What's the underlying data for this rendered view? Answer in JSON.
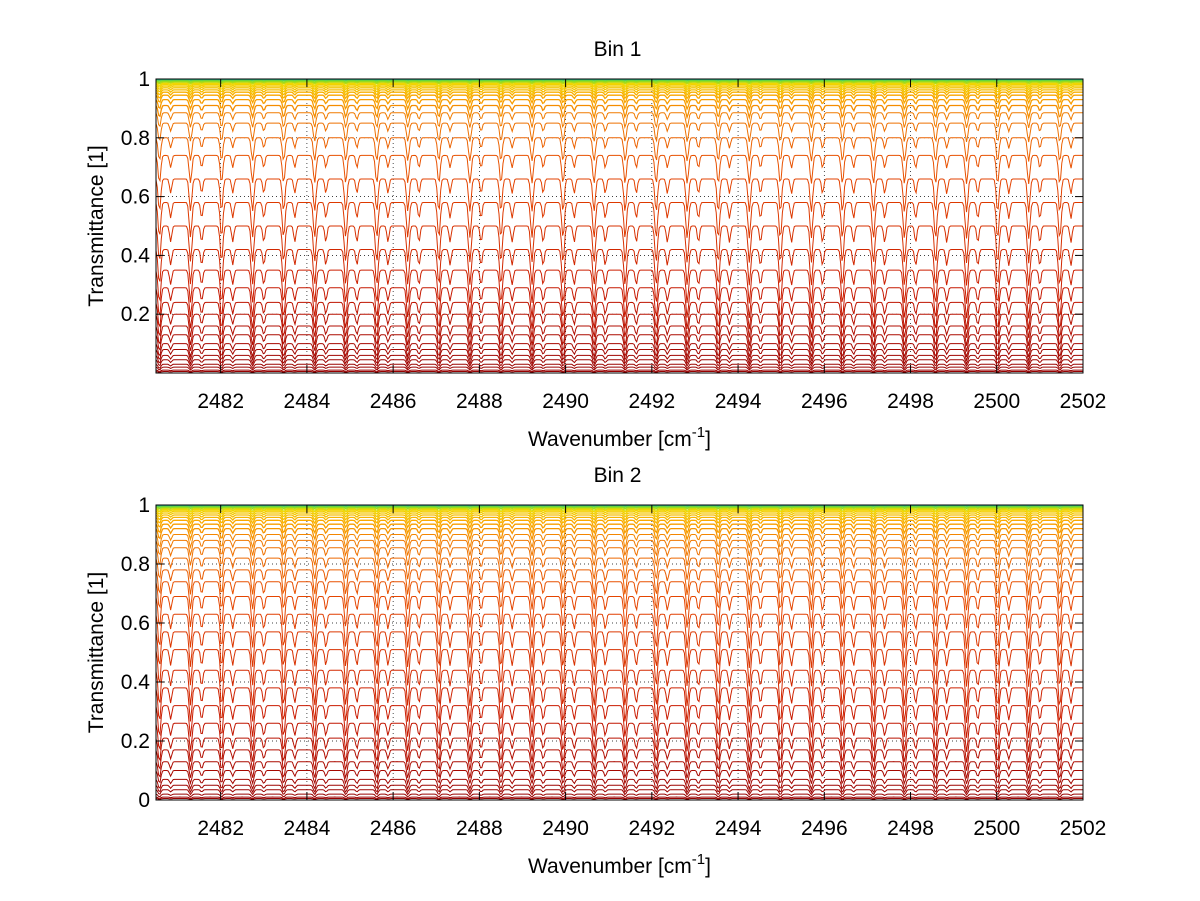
{
  "chart_data": [
    {
      "type": "line",
      "title": "Bin 1",
      "xlabel": "Wavenumber [cm",
      "xlabel_sup": "-1",
      "xlabel_tail": "]",
      "ylabel": "Transmittance [1]",
      "xlim": [
        2480.5,
        2502
      ],
      "ylim": [
        0,
        1
      ],
      "xticks": [
        2482,
        2484,
        2486,
        2488,
        2490,
        2492,
        2494,
        2496,
        2498,
        2500,
        2502
      ],
      "yticks": [
        0.2,
        0.4,
        0.6,
        0.8,
        1
      ],
      "ytick_labels": [
        "0.2",
        "0.4",
        "0.6",
        "0.8",
        "1"
      ],
      "grid": true,
      "line_spacing_cm1": 0.72,
      "line_center_offset": 2481.3,
      "series_levels": [
        0.005,
        0.01,
        0.02,
        0.03,
        0.045,
        0.06,
        0.08,
        0.1,
        0.13,
        0.16,
        0.2,
        0.24,
        0.29,
        0.35,
        0.42,
        0.5,
        0.58,
        0.66,
        0.74,
        0.8,
        0.85,
        0.885,
        0.91,
        0.93,
        0.945,
        0.955,
        0.963,
        0.97,
        0.976,
        0.981,
        0.985,
        0.989,
        0.992,
        0.995,
        0.998
      ]
    },
    {
      "type": "line",
      "title": "Bin 2",
      "xlabel": "Wavenumber [cm",
      "xlabel_sup": "-1",
      "xlabel_tail": "]",
      "ylabel": "Transmittance [1]",
      "xlim": [
        2480.5,
        2502
      ],
      "ylim": [
        0,
        1
      ],
      "xticks": [
        2482,
        2484,
        2486,
        2488,
        2490,
        2492,
        2494,
        2496,
        2498,
        2500,
        2502
      ],
      "yticks": [
        0,
        0.2,
        0.4,
        0.6,
        0.8,
        1
      ],
      "ytick_labels": [
        "0",
        "0.2",
        "0.4",
        "0.6",
        "0.8",
        "1"
      ],
      "grid": true,
      "line_spacing_cm1": 0.72,
      "line_center_offset": 2481.3,
      "series_levels": [
        0.005,
        0.01,
        0.02,
        0.035,
        0.05,
        0.07,
        0.1,
        0.13,
        0.17,
        0.21,
        0.26,
        0.32,
        0.38,
        0.44,
        0.51,
        0.57,
        0.63,
        0.69,
        0.74,
        0.78,
        0.82,
        0.855,
        0.88,
        0.9,
        0.92,
        0.935,
        0.948,
        0.958,
        0.966,
        0.973,
        0.979,
        0.984,
        0.988,
        0.992,
        0.995,
        0.998
      ]
    }
  ]
}
